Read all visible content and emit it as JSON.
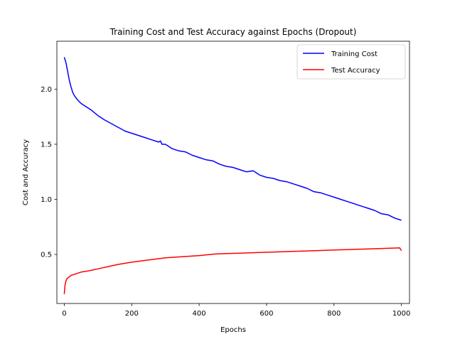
{
  "chart_data": {
    "type": "line",
    "title": "Training Cost and Test Accuracy against Epochs (Dropout)",
    "xlabel": "Epochs",
    "ylabel": "Cost and Accuracy",
    "xlim": [
      -22,
      1024
    ],
    "ylim": [
      0.055,
      2.435
    ],
    "xticks": [
      0,
      200,
      400,
      600,
      800,
      1000
    ],
    "yticks": [
      0.5,
      1.0,
      1.5,
      2.0
    ],
    "xtick_labels": [
      "0",
      "200",
      "400",
      "600",
      "800",
      "1000"
    ],
    "ytick_labels": [
      "0.5",
      "1.0",
      "1.5",
      "2.0"
    ],
    "grid": false,
    "legend": {
      "position": "top-right"
    },
    "series": [
      {
        "name": "Training Cost",
        "color": "#0000ff",
        "x": [
          0,
          5,
          10,
          15,
          20,
          25,
          30,
          40,
          50,
          60,
          70,
          80,
          100,
          120,
          150,
          180,
          200,
          230,
          260,
          280,
          285,
          290,
          300,
          320,
          340,
          360,
          380,
          400,
          420,
          440,
          460,
          480,
          500,
          520,
          540,
          560,
          580,
          600,
          620,
          640,
          660,
          680,
          700,
          720,
          740,
          760,
          780,
          800,
          820,
          840,
          860,
          880,
          900,
          920,
          940,
          960,
          980,
          1000
        ],
        "y": [
          2.29,
          2.24,
          2.16,
          2.08,
          2.02,
          1.97,
          1.94,
          1.9,
          1.87,
          1.85,
          1.83,
          1.81,
          1.76,
          1.72,
          1.67,
          1.62,
          1.6,
          1.57,
          1.54,
          1.52,
          1.53,
          1.5,
          1.5,
          1.46,
          1.44,
          1.43,
          1.4,
          1.38,
          1.36,
          1.35,
          1.32,
          1.3,
          1.29,
          1.27,
          1.25,
          1.26,
          1.22,
          1.2,
          1.19,
          1.17,
          1.16,
          1.14,
          1.12,
          1.1,
          1.07,
          1.06,
          1.04,
          1.02,
          1.0,
          0.98,
          0.96,
          0.94,
          0.92,
          0.9,
          0.87,
          0.86,
          0.83,
          0.81
        ]
      },
      {
        "name": "Test Accuracy",
        "color": "#ff0000",
        "x": [
          0,
          2,
          5,
          8,
          12,
          20,
          30,
          50,
          70,
          100,
          130,
          160,
          200,
          250,
          300,
          350,
          400,
          450,
          500,
          550,
          600,
          650,
          700,
          750,
          800,
          850,
          900,
          950,
          995,
          1000
        ],
        "y": [
          0.14,
          0.22,
          0.26,
          0.28,
          0.29,
          0.31,
          0.32,
          0.34,
          0.35,
          0.37,
          0.39,
          0.41,
          0.43,
          0.45,
          0.47,
          0.48,
          0.49,
          0.505,
          0.51,
          0.515,
          0.52,
          0.525,
          0.53,
          0.535,
          0.54,
          0.545,
          0.55,
          0.555,
          0.56,
          0.535
        ]
      }
    ]
  }
}
